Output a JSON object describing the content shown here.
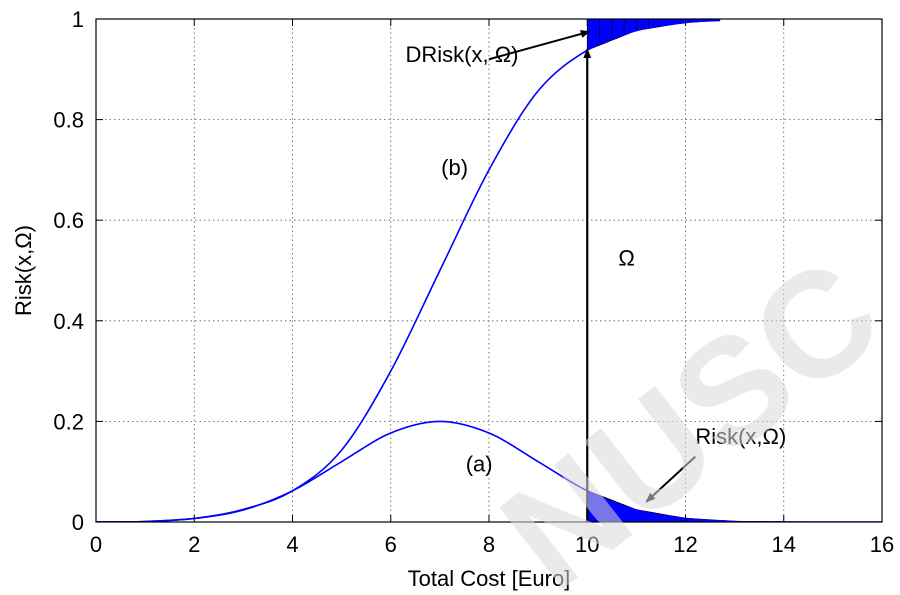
{
  "chart_data": {
    "type": "line",
    "xlabel": "Total Cost [Euro]",
    "ylabel": "Risk(x,Ω)",
    "xlim": [
      0,
      16
    ],
    "ylim": [
      0,
      1
    ],
    "xticks": [
      "0",
      "2",
      "4",
      "6",
      "8",
      "10",
      "12",
      "14",
      "16"
    ],
    "yticks": [
      "0",
      "0.2",
      "0.4",
      "0.6",
      "0.8",
      "1"
    ],
    "grid": true,
    "series": [
      {
        "name": "(a)",
        "color": "#0000ff",
        "x": [
          0,
          1,
          2,
          3,
          4,
          5,
          6,
          7,
          8,
          9,
          10,
          11,
          12,
          13,
          14,
          15,
          16
        ],
        "y": [
          0.0001,
          0.001,
          0.007,
          0.024,
          0.062,
          0.12,
          0.177,
          0.2,
          0.177,
          0.12,
          0.062,
          0.024,
          0.007,
          0.001,
          0.0001,
          0.0,
          0.0
        ]
      },
      {
        "name": "(b)",
        "color": "#0000ff",
        "x": [
          0,
          1,
          2,
          3,
          4,
          5,
          6,
          7,
          8,
          9,
          10,
          11,
          12,
          12.7
        ],
        "y": [
          0.0001,
          0.001,
          0.007,
          0.025,
          0.062,
          0.143,
          0.3,
          0.5,
          0.7,
          0.857,
          0.938,
          0.977,
          0.993,
          0.997
        ]
      }
    ],
    "annotations": {
      "label_a": "(a)",
      "label_b": "(b)",
      "omega": "Ω",
      "drisk": "DRisk(x, Ω)",
      "risk": "Risk(x,Ω)"
    },
    "threshold_x": 10,
    "watermark": "NUSC"
  }
}
